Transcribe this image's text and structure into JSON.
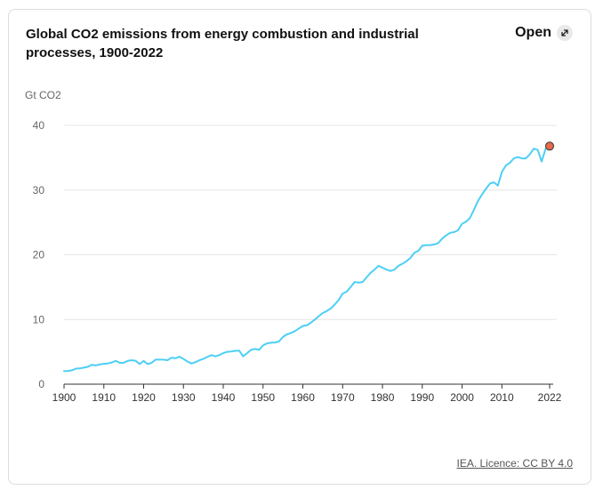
{
  "header": {
    "title": "Global CO2 emissions from energy combustion and industrial processes, 1900-2022",
    "open_label": "Open"
  },
  "footer": {
    "licence": "IEA. Licence: CC BY 4.0"
  },
  "colors": {
    "line": "#4dcff5",
    "marker_fill": "#e76a4a",
    "grid": "#e6e6e6",
    "text": "#666666"
  },
  "chart_data": {
    "type": "line",
    "ylabel": "Gt CO2",
    "xlim": [
      1900,
      2022
    ],
    "ylim": [
      0,
      40
    ],
    "x_ticks": [
      1900,
      1910,
      1920,
      1930,
      1940,
      1950,
      1960,
      1970,
      1980,
      1990,
      2000,
      2010,
      2022
    ],
    "y_ticks": [
      0,
      10,
      20,
      30,
      40
    ],
    "grid": "horizontal",
    "highlight_last_point": true,
    "series": [
      {
        "name": "",
        "x": [
          1900,
          1901,
          1902,
          1903,
          1904,
          1905,
          1906,
          1907,
          1908,
          1909,
          1910,
          1911,
          1912,
          1913,
          1914,
          1915,
          1916,
          1917,
          1918,
          1919,
          1920,
          1921,
          1922,
          1923,
          1924,
          1925,
          1926,
          1927,
          1928,
          1929,
          1930,
          1931,
          1932,
          1933,
          1934,
          1935,
          1936,
          1937,
          1938,
          1939,
          1940,
          1941,
          1942,
          1943,
          1944,
          1945,
          1946,
          1947,
          1948,
          1949,
          1950,
          1951,
          1952,
          1953,
          1954,
          1955,
          1956,
          1957,
          1958,
          1959,
          1960,
          1961,
          1962,
          1963,
          1964,
          1965,
          1966,
          1967,
          1968,
          1969,
          1970,
          1971,
          1972,
          1973,
          1974,
          1975,
          1976,
          1977,
          1978,
          1979,
          1980,
          1981,
          1982,
          1983,
          1984,
          1985,
          1986,
          1987,
          1988,
          1989,
          1990,
          1991,
          1992,
          1993,
          1994,
          1995,
          1996,
          1997,
          1998,
          1999,
          2000,
          2001,
          2002,
          2003,
          2004,
          2005,
          2006,
          2007,
          2008,
          2009,
          2010,
          2011,
          2012,
          2013,
          2014,
          2015,
          2016,
          2017,
          2018,
          2019,
          2020,
          2021,
          2022
        ],
        "values": [
          2.0,
          2.05,
          2.15,
          2.4,
          2.45,
          2.55,
          2.7,
          3.0,
          2.9,
          3.05,
          3.15,
          3.2,
          3.35,
          3.6,
          3.3,
          3.3,
          3.6,
          3.7,
          3.6,
          3.1,
          3.6,
          3.1,
          3.3,
          3.8,
          3.8,
          3.8,
          3.7,
          4.1,
          4.0,
          4.25,
          3.9,
          3.5,
          3.2,
          3.4,
          3.7,
          3.9,
          4.2,
          4.5,
          4.3,
          4.5,
          4.8,
          5.0,
          5.05,
          5.15,
          5.2,
          4.3,
          4.8,
          5.3,
          5.45,
          5.3,
          6.0,
          6.3,
          6.4,
          6.45,
          6.6,
          7.3,
          7.7,
          7.9,
          8.2,
          8.6,
          9.0,
          9.1,
          9.5,
          10.0,
          10.5,
          11.0,
          11.3,
          11.7,
          12.3,
          13.0,
          14.0,
          14.3,
          15.0,
          15.8,
          15.7,
          15.8,
          16.5,
          17.2,
          17.7,
          18.3,
          18.0,
          17.7,
          17.5,
          17.7,
          18.3,
          18.6,
          19.0,
          19.5,
          20.3,
          20.6,
          21.4,
          21.5,
          21.5,
          21.6,
          21.8,
          22.5,
          23.0,
          23.4,
          23.5,
          23.8,
          24.8,
          25.1,
          25.7,
          27.0,
          28.3,
          29.3,
          30.2,
          31.0,
          31.2,
          30.7,
          32.8,
          33.8,
          34.2,
          34.9,
          35.1,
          34.9,
          34.9,
          35.5,
          36.4,
          36.2,
          34.4,
          36.4,
          36.8
        ]
      }
    ]
  }
}
